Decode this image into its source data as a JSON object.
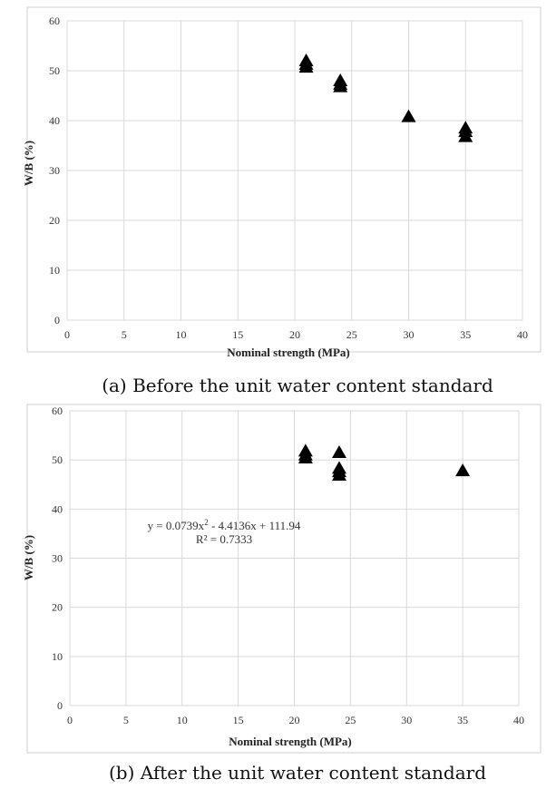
{
  "chart_data": [
    {
      "type": "scatter",
      "xlabel": "Nominal strength (MPa)",
      "ylabel": "W/B (%)",
      "caption": "(a) Before the unit water content standard",
      "xlim": [
        0,
        40
      ],
      "ylim": [
        0,
        60
      ],
      "xticks": [
        0,
        5,
        10,
        15,
        20,
        25,
        30,
        35,
        40
      ],
      "yticks": [
        0,
        10,
        20,
        30,
        40,
        50,
        60
      ],
      "grid": true,
      "marker": "triangle",
      "series": [
        {
          "points": [
            {
              "x": 21,
              "y": 52.0
            },
            {
              "x": 21,
              "y": 51.3
            },
            {
              "x": 21,
              "y": 50.7
            },
            {
              "x": 24,
              "y": 48.0
            },
            {
              "x": 24,
              "y": 47.3
            },
            {
              "x": 24,
              "y": 46.8
            },
            {
              "x": 30,
              "y": 40.8
            },
            {
              "x": 35,
              "y": 38.5
            },
            {
              "x": 35,
              "y": 37.8
            },
            {
              "x": 35,
              "y": 36.8
            }
          ]
        }
      ]
    },
    {
      "type": "scatter",
      "xlabel": "Nominal strength (MPa)",
      "ylabel": "W/B (%)",
      "caption": "(b) After the unit water content standard",
      "xlim": [
        0,
        40
      ],
      "ylim": [
        0,
        60
      ],
      "xticks": [
        0,
        5,
        10,
        15,
        20,
        25,
        30,
        35,
        40
      ],
      "yticks": [
        0,
        10,
        20,
        30,
        40,
        50,
        60
      ],
      "grid": true,
      "marker": "triangle",
      "annotation": {
        "equation_prefix": "y = 0.0739x",
        "equation_exponent": "2",
        "equation_suffix": " - 4.4136x + 111.94",
        "r2": "R² = 0.7333"
      },
      "series": [
        {
          "points": [
            {
              "x": 21,
              "y": 51.8
            },
            {
              "x": 21,
              "y": 51.0
            },
            {
              "x": 21,
              "y": 50.4
            },
            {
              "x": 24,
              "y": 51.5
            },
            {
              "x": 24,
              "y": 48.3
            },
            {
              "x": 24,
              "y": 47.6
            },
            {
              "x": 24,
              "y": 46.9
            },
            {
              "x": 35,
              "y": 47.8
            }
          ]
        }
      ]
    }
  ]
}
